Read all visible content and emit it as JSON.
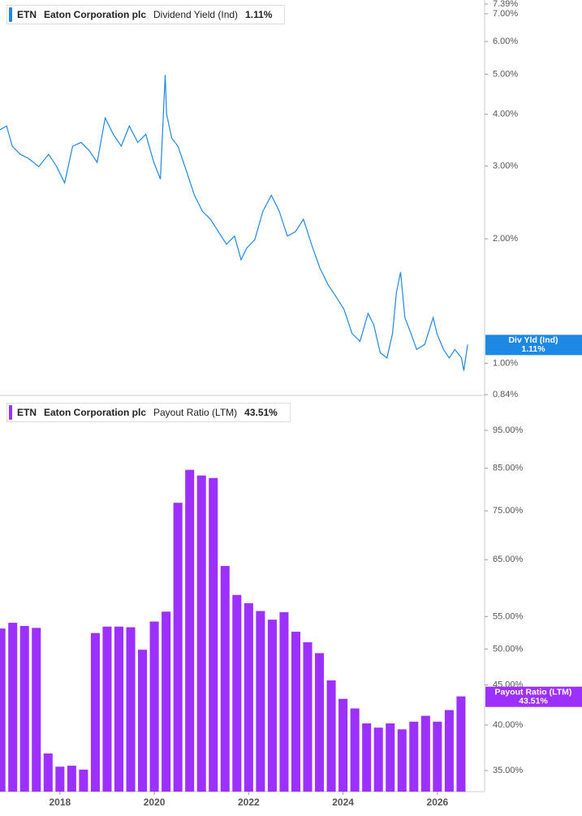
{
  "chart_data": [
    {
      "type": "line",
      "ticker": "ETN",
      "company": "Eaton Corporation plc",
      "metric": "Dividend Yield (Ind)",
      "short_name": "Div Yld (Ind)",
      "current_label": "1.11%",
      "color": "#1e88e5",
      "log_scale": true,
      "xlim": [
        2016.73,
        2027.0
      ],
      "ylim": [
        0.84,
        7.39
      ],
      "yticks": [
        {
          "value": 7.39,
          "label": "7.39%"
        },
        {
          "value": 7,
          "label": "7.00%"
        },
        {
          "value": 6,
          "label": "6.00%"
        },
        {
          "value": 5,
          "label": "5.00%"
        },
        {
          "value": 4,
          "label": "4.00%"
        },
        {
          "value": 3,
          "label": "3.00%"
        },
        {
          "value": 2,
          "label": "2.00%"
        },
        {
          "value": 1,
          "label": "1.00%"
        },
        {
          "value": 0.84,
          "label": "0.84%"
        }
      ],
      "x": [
        2016.73,
        2016.87,
        2016.99,
        2017.16,
        2017.33,
        2017.55,
        2017.76,
        2017.93,
        2018.1,
        2018.27,
        2018.45,
        2018.62,
        2018.79,
        2018.96,
        2019.13,
        2019.3,
        2019.47,
        2019.65,
        2019.82,
        2019.99,
        2020.13,
        2020.23,
        2020.26,
        2020.37,
        2020.5,
        2020.68,
        2020.85,
        2021.02,
        2021.19,
        2021.36,
        2021.53,
        2021.7,
        2021.84,
        2021.96,
        2022.13,
        2022.3,
        2022.48,
        2022.65,
        2022.82,
        2022.99,
        2023.16,
        2023.33,
        2023.51,
        2023.68,
        2023.85,
        2024.02,
        2024.19,
        2024.36,
        2024.53,
        2024.65,
        2024.79,
        2024.93,
        2025.05,
        2025.13,
        2025.22,
        2025.31,
        2025.44,
        2025.56,
        2025.73,
        2025.91,
        2025.99,
        2026.13,
        2026.25,
        2026.37,
        2026.51,
        2026.56,
        2026.64
      ],
      "values": [
        3.67,
        3.75,
        3.35,
        3.2,
        3.13,
        2.99,
        3.2,
        2.99,
        2.73,
        3.35,
        3.42,
        3.27,
        3.06,
        3.92,
        3.58,
        3.35,
        3.75,
        3.42,
        3.58,
        3.06,
        2.79,
        4.98,
        4.01,
        3.5,
        3.35,
        2.92,
        2.55,
        2.33,
        2.23,
        2.08,
        1.94,
        2.03,
        1.78,
        1.9,
        1.99,
        2.33,
        2.55,
        2.33,
        2.03,
        2.08,
        2.23,
        1.94,
        1.7,
        1.55,
        1.45,
        1.35,
        1.18,
        1.13,
        1.32,
        1.24,
        1.06,
        1.03,
        1.18,
        1.48,
        1.66,
        1.29,
        1.18,
        1.08,
        1.11,
        1.29,
        1.18,
        1.08,
        1.03,
        1.08,
        1.03,
        0.96,
        1.11
      ]
    },
    {
      "type": "bar",
      "ticker": "ETN",
      "company": "Eaton Corporation plc",
      "metric": "Payout Ratio (LTM)",
      "short_name": "Payout Ratio (LTM)",
      "current_label": "43.51%",
      "color": "#9b30ff",
      "log_scale": true,
      "xlim": [
        2016.73,
        2027.0
      ],
      "ylim": [
        32.9,
        104.5
      ],
      "xticks": [
        2018,
        2020,
        2022,
        2024,
        2026
      ],
      "yticks": [
        {
          "value": 95,
          "label": "95.00%"
        },
        {
          "value": 85,
          "label": "85.00%"
        },
        {
          "value": 75,
          "label": "75.00%"
        },
        {
          "value": 65,
          "label": "65.00%"
        },
        {
          "value": 55,
          "label": "55.00%"
        },
        {
          "value": 50,
          "label": "50.00%"
        },
        {
          "value": 45,
          "label": "45.00%"
        },
        {
          "value": 40,
          "label": "40.00%"
        },
        {
          "value": 35,
          "label": "35.00%"
        }
      ],
      "x": [
        2016.75,
        2017.0,
        2017.25,
        2017.5,
        2017.75,
        2018.0,
        2018.25,
        2018.5,
        2018.75,
        2019.0,
        2019.25,
        2019.5,
        2019.75,
        2020.0,
        2020.25,
        2020.5,
        2020.75,
        2021.0,
        2021.25,
        2021.5,
        2021.75,
        2022.0,
        2022.25,
        2022.5,
        2022.75,
        2023.0,
        2023.25,
        2023.5,
        2023.75,
        2024.0,
        2024.25,
        2024.5,
        2024.75,
        2025.0,
        2025.25,
        2025.5,
        2025.75,
        2026.0,
        2026.25,
        2026.5
      ],
      "values": [
        53.1,
        54.0,
        53.5,
        53.2,
        36.8,
        35.4,
        35.5,
        35.1,
        52.4,
        53.4,
        53.4,
        53.3,
        49.9,
        54.2,
        55.8,
        76.8,
        84.6,
        83.2,
        82.6,
        63.8,
        58.6,
        57.2,
        55.9,
        54.5,
        55.7,
        52.6,
        51.0,
        49.4,
        45.6,
        43.2,
        42.0,
        40.2,
        39.7,
        40.2,
        39.5,
        40.4,
        41.1,
        40.4,
        41.8,
        43.51
      ]
    }
  ]
}
